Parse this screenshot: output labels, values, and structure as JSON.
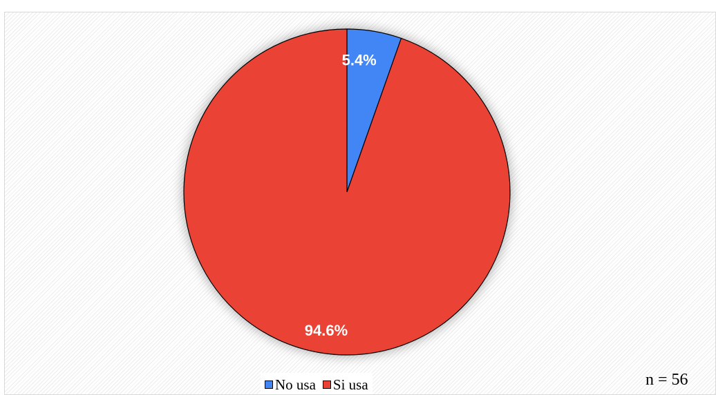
{
  "chart_data": {
    "type": "pie",
    "categories": [
      "No usa",
      "Si usa"
    ],
    "values": [
      5.4,
      94.6
    ],
    "labels": [
      "5.4%",
      "94.6%"
    ],
    "colors": [
      "#4285f4",
      "#ea4335"
    ],
    "legend_position": "bottom"
  },
  "legend": {
    "items": [
      {
        "label": "No usa",
        "color": "#4285f4"
      },
      {
        "label": "Si usa",
        "color": "#ea4335"
      }
    ]
  },
  "sample_note": "n = 56"
}
